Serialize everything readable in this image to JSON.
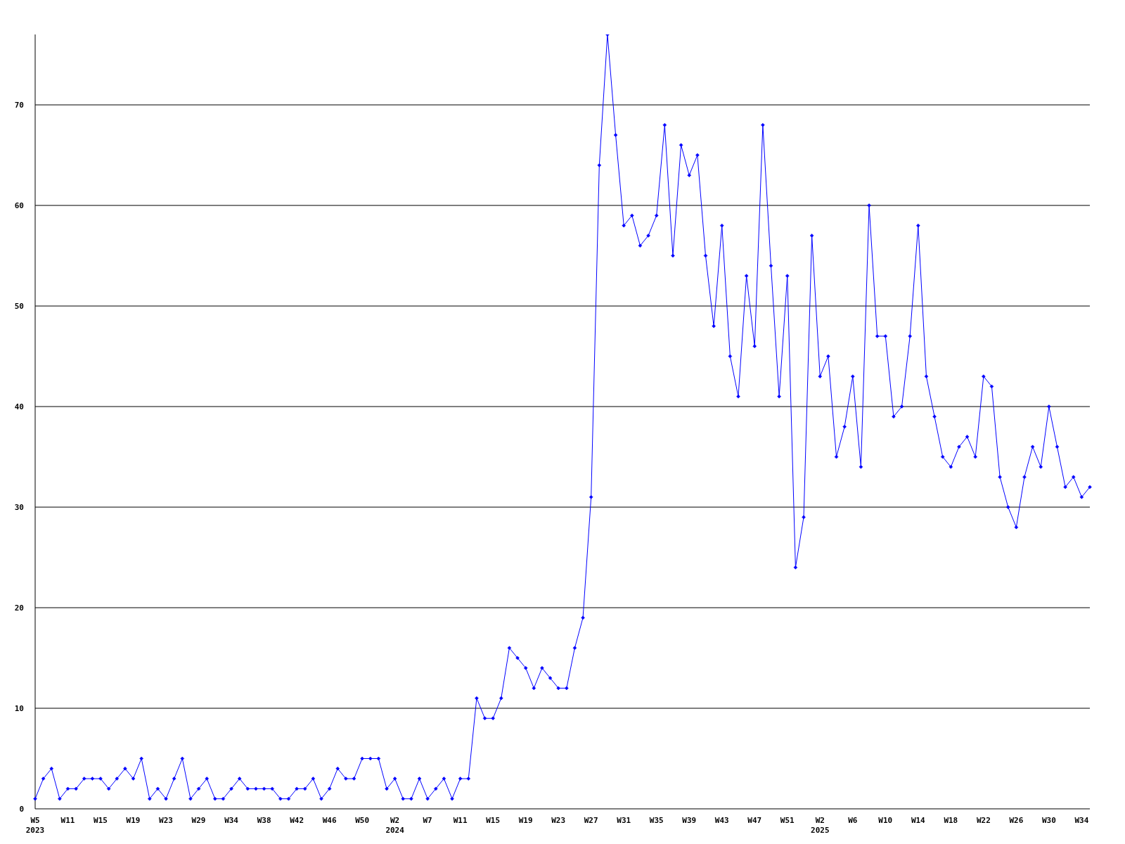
{
  "chart_data": {
    "type": "line",
    "categories": [
      "W5\n2023",
      null,
      null,
      null,
      "W11",
      null,
      null,
      null,
      "W15",
      null,
      null,
      null,
      "W19",
      null,
      null,
      null,
      "W23",
      null,
      null,
      null,
      "W29",
      null,
      null,
      null,
      "W34",
      null,
      null,
      null,
      "W38",
      null,
      null,
      null,
      "W42",
      null,
      null,
      null,
      "W46",
      null,
      null,
      null,
      "W50",
      null,
      null,
      null,
      "W2\n2024",
      null,
      null,
      null,
      "W7",
      null,
      null,
      null,
      "W11",
      null,
      null,
      null,
      "W15",
      null,
      null,
      null,
      "W19",
      null,
      null,
      null,
      "W23",
      null,
      null,
      null,
      "W27",
      null,
      null,
      null,
      "W31",
      null,
      null,
      null,
      "W35",
      null,
      null,
      null,
      "W39",
      null,
      null,
      null,
      "W43",
      null,
      null,
      null,
      "W47",
      null,
      null,
      null,
      "W51",
      null,
      null,
      null,
      "W2\n2025",
      null,
      null,
      null,
      "W6",
      null,
      null,
      null,
      "W10",
      null,
      null,
      null,
      "W14",
      null,
      null,
      null,
      "W18",
      null,
      null,
      null,
      "W22",
      null,
      null,
      null,
      "W26",
      null,
      null,
      null,
      "W30",
      null,
      null,
      null,
      "W34",
      null
    ],
    "series": [
      {
        "color": "#0000ff",
        "values": [
          1,
          3,
          4,
          1,
          2,
          2,
          3,
          3,
          3,
          2,
          3,
          4,
          3,
          5,
          1,
          2,
          1,
          3,
          5,
          1,
          2,
          3,
          1,
          1,
          2,
          3,
          2,
          2,
          2,
          2,
          1,
          1,
          2,
          2,
          3,
          1,
          2,
          4,
          3,
          3,
          5,
          5,
          5,
          2,
          3,
          1,
          1,
          3,
          1,
          2,
          3,
          1,
          3,
          3,
          11,
          9,
          9,
          11,
          16,
          15,
          14,
          12,
          14,
          13,
          12,
          12,
          16,
          19,
          31,
          64,
          77,
          67,
          58,
          59,
          56,
          57,
          59,
          68,
          55,
          66,
          63,
          65,
          55,
          48,
          58,
          45,
          41,
          53,
          46,
          68,
          54,
          41,
          53,
          24,
          29,
          57,
          43,
          45,
          35,
          38,
          43,
          34,
          60,
          47,
          47,
          39,
          40,
          47,
          58,
          43,
          39,
          35,
          34,
          36,
          37,
          35,
          43,
          42,
          33,
          30,
          28,
          33,
          36,
          34,
          40,
          36,
          32,
          33,
          31,
          32
        ]
      }
    ],
    "ylim": [
      0,
      77
    ],
    "yticks": [
      0,
      10,
      20,
      30,
      40,
      50,
      60,
      70
    ],
    "grid": "y",
    "marker": "diamond",
    "line_style": "solid"
  }
}
